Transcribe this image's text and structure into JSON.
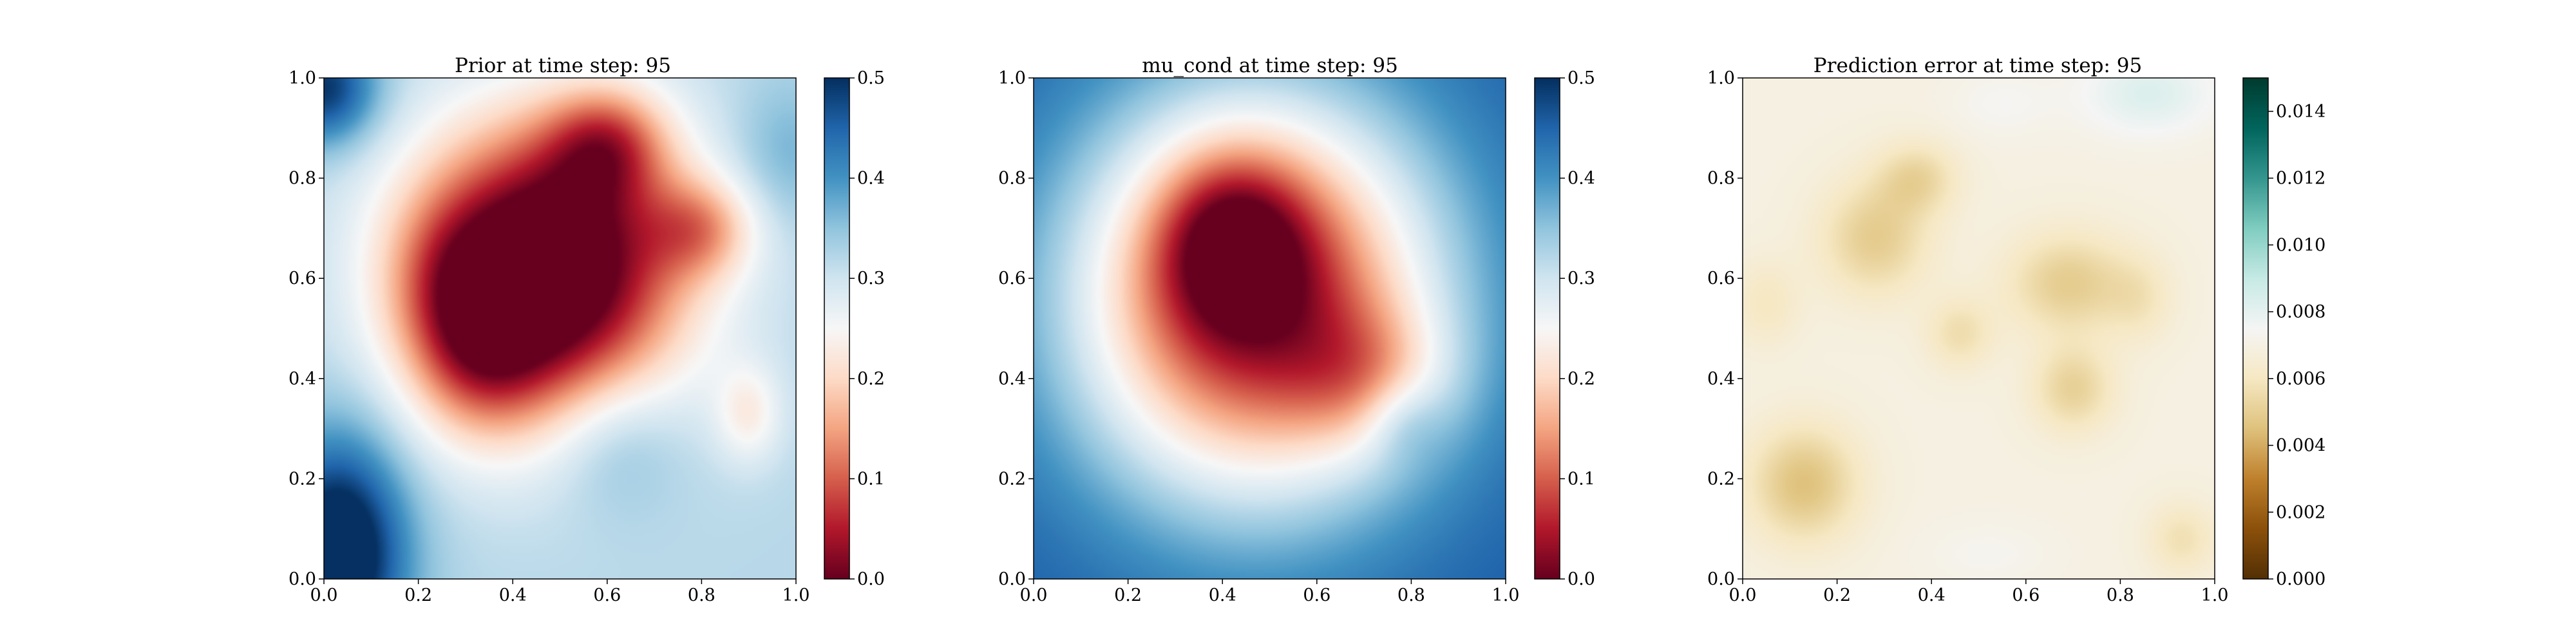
{
  "chart_data": [
    {
      "type": "heatmap",
      "title": "Prior at time step: 95",
      "xlabel": "",
      "ylabel": "",
      "xlim": [
        0.0,
        1.0
      ],
      "ylim": [
        0.0,
        1.0
      ],
      "x_ticks": [
        "0.0",
        "0.2",
        "0.4",
        "0.6",
        "0.8",
        "1.0"
      ],
      "y_ticks": [
        "0.0",
        "0.2",
        "0.4",
        "0.6",
        "0.8",
        "1.0"
      ],
      "colormap": "RdBu",
      "colorbar": {
        "min": 0.0,
        "max": 0.5,
        "ticks": [
          "0.0",
          "0.1",
          "0.2",
          "0.3",
          "0.4",
          "0.5"
        ]
      },
      "grid": false,
      "field": {
        "base": 0.32,
        "bumps": [
          {
            "x": 0.47,
            "y": 0.62,
            "amp": -0.42,
            "sx": 0.2,
            "sy": 0.2
          },
          {
            "x": 0.33,
            "y": 0.45,
            "amp": -0.12,
            "sx": 0.1,
            "sy": 0.12
          },
          {
            "x": 0.6,
            "y": 0.87,
            "amp": -0.15,
            "sx": 0.09,
            "sy": 0.08
          },
          {
            "x": 0.8,
            "y": 0.7,
            "amp": -0.12,
            "sx": 0.08,
            "sy": 0.07
          },
          {
            "x": 0.9,
            "y": 0.33,
            "amp": -0.08,
            "sx": 0.05,
            "sy": 0.07
          },
          {
            "x": 0.25,
            "y": 0.6,
            "amp": -0.06,
            "sx": 0.09,
            "sy": 0.12
          },
          {
            "x": 0.03,
            "y": 0.05,
            "amp": 0.25,
            "sx": 0.1,
            "sy": 0.16
          },
          {
            "x": 0.0,
            "y": 0.98,
            "amp": 0.18,
            "sx": 0.08,
            "sy": 0.08
          },
          {
            "x": 0.62,
            "y": 0.28,
            "amp": 0.06,
            "sx": 0.1,
            "sy": 0.1
          },
          {
            "x": 0.98,
            "y": 0.85,
            "amp": 0.05,
            "sx": 0.08,
            "sy": 0.1
          }
        ]
      }
    },
    {
      "type": "heatmap",
      "title": "mu_cond at time step: 95",
      "xlabel": "",
      "ylabel": "",
      "xlim": [
        0.0,
        1.0
      ],
      "ylim": [
        0.0,
        1.0
      ],
      "x_ticks": [
        "0.0",
        "0.2",
        "0.4",
        "0.6",
        "0.8",
        "1.0"
      ],
      "y_ticks": [
        "0.0",
        "0.2",
        "0.4",
        "0.6",
        "0.8",
        "1.0"
      ],
      "colormap": "RdBu",
      "colorbar": {
        "min": 0.0,
        "max": 0.5,
        "ticks": [
          "0.0",
          "0.1",
          "0.2",
          "0.3",
          "0.4",
          "0.5"
        ]
      },
      "grid": false,
      "field": {
        "base": 0.46,
        "bumps": [
          {
            "x": 0.47,
            "y": 0.56,
            "amp": -0.44,
            "sx": 0.27,
            "sy": 0.28
          },
          {
            "x": 0.42,
            "y": 0.68,
            "amp": -0.15,
            "sx": 0.11,
            "sy": 0.12
          },
          {
            "x": 0.72,
            "y": 0.4,
            "amp": -0.1,
            "sx": 0.12,
            "sy": 0.1
          },
          {
            "x": 0.78,
            "y": 0.32,
            "amp": 0.06,
            "sx": 0.06,
            "sy": 0.06
          }
        ]
      }
    },
    {
      "type": "heatmap",
      "title": "Prediction error at time step: 95",
      "xlabel": "",
      "ylabel": "",
      "xlim": [
        0.0,
        1.0
      ],
      "ylim": [
        0.0,
        1.0
      ],
      "x_ticks": [
        "0.0",
        "0.2",
        "0.4",
        "0.6",
        "0.8",
        "1.0"
      ],
      "y_ticks": [
        "0.0",
        "0.2",
        "0.4",
        "0.6",
        "0.8",
        "1.0"
      ],
      "colormap": "BrBG",
      "colorbar": {
        "min": 0.0,
        "max": 0.015,
        "ticks": [
          "0.000",
          "0.002",
          "0.004",
          "0.006",
          "0.008",
          "0.010",
          "0.012",
          "0.014"
        ]
      },
      "grid": false,
      "field": {
        "base": 0.0069,
        "bumps": [
          {
            "x": 0.13,
            "y": 0.19,
            "amp": -0.0024,
            "sx": 0.08,
            "sy": 0.08
          },
          {
            "x": 0.28,
            "y": 0.68,
            "amp": -0.002,
            "sx": 0.08,
            "sy": 0.08
          },
          {
            "x": 0.37,
            "y": 0.8,
            "amp": -0.0016,
            "sx": 0.06,
            "sy": 0.05
          },
          {
            "x": 0.69,
            "y": 0.59,
            "amp": -0.002,
            "sx": 0.09,
            "sy": 0.07
          },
          {
            "x": 0.7,
            "y": 0.38,
            "amp": -0.0018,
            "sx": 0.06,
            "sy": 0.06
          },
          {
            "x": 0.46,
            "y": 0.49,
            "amp": -0.0013,
            "sx": 0.05,
            "sy": 0.05
          },
          {
            "x": 0.05,
            "y": 0.55,
            "amp": -0.0009,
            "sx": 0.05,
            "sy": 0.06
          },
          {
            "x": 0.93,
            "y": 0.08,
            "amp": -0.0012,
            "sx": 0.05,
            "sy": 0.05
          },
          {
            "x": 0.84,
            "y": 0.56,
            "amp": -0.0009,
            "sx": 0.05,
            "sy": 0.06
          },
          {
            "x": 0.86,
            "y": 0.97,
            "amp": 0.0014,
            "sx": 0.1,
            "sy": 0.06
          },
          {
            "x": 0.55,
            "y": 0.95,
            "amp": 0.0005,
            "sx": 0.08,
            "sy": 0.05
          },
          {
            "x": 0.52,
            "y": 0.05,
            "amp": 0.0004,
            "sx": 0.1,
            "sy": 0.05
          }
        ]
      }
    }
  ]
}
